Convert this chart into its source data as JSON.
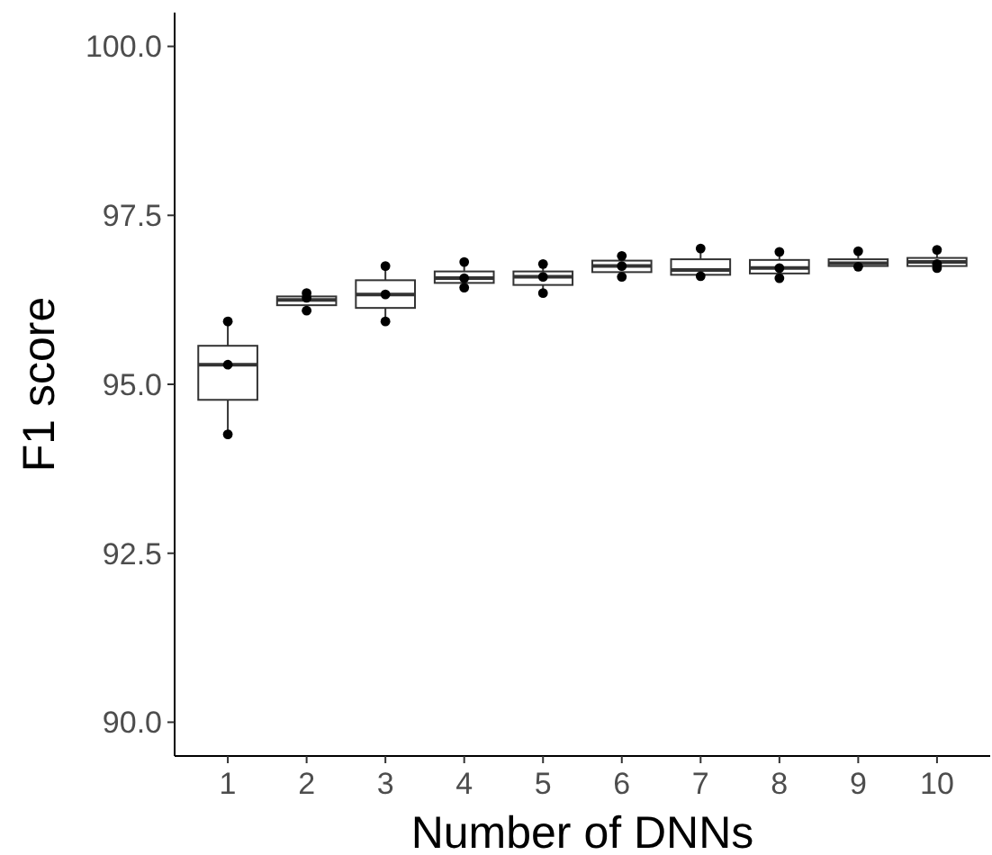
{
  "chart_data": {
    "type": "box",
    "xlabel": "Number of DNNs",
    "ylabel": "F1 score",
    "categories": [
      "1",
      "2",
      "3",
      "4",
      "5",
      "6",
      "7",
      "8",
      "9",
      "10"
    ],
    "boxes": [
      {
        "low": 94.26,
        "q1": 94.77,
        "median": 95.29,
        "q3": 95.57,
        "high": 95.93
      },
      {
        "low": 96.09,
        "q1": 96.17,
        "median": 96.25,
        "q3": 96.3,
        "high": 96.35
      },
      {
        "low": 95.93,
        "q1": 96.13,
        "median": 96.33,
        "q3": 96.54,
        "high": 96.75
      },
      {
        "low": 96.43,
        "q1": 96.5,
        "median": 96.57,
        "q3": 96.67,
        "high": 96.81
      },
      {
        "low": 96.35,
        "q1": 96.47,
        "median": 96.59,
        "q3": 96.67,
        "high": 96.78
      },
      {
        "low": 96.59,
        "q1": 96.66,
        "median": 96.75,
        "q3": 96.83,
        "high": 96.9
      },
      {
        "low": 96.6,
        "q1": 96.62,
        "median": 96.69,
        "q3": 96.85,
        "high": 97.01
      },
      {
        "low": 96.57,
        "q1": 96.64,
        "median": 96.72,
        "q3": 96.84,
        "high": 96.96
      },
      {
        "low": 96.74,
        "q1": 96.75,
        "median": 96.79,
        "q3": 96.85,
        "high": 96.97
      },
      {
        "low": 96.72,
        "q1": 96.75,
        "median": 96.81,
        "q3": 96.87,
        "high": 96.99
      }
    ],
    "series": [
      {
        "type": "scatter",
        "color": "#000000",
        "x": [
          "1",
          "1",
          "1",
          "2",
          "2",
          "2",
          "3",
          "3",
          "3",
          "4",
          "4",
          "4",
          "5",
          "5",
          "5",
          "6",
          "6",
          "6",
          "7",
          "7",
          "8",
          "8",
          "8",
          "9",
          "9",
          "10",
          "10",
          "10"
        ],
        "values": [
          95.93,
          95.29,
          94.26,
          96.35,
          96.28,
          96.09,
          96.75,
          96.33,
          95.93,
          96.81,
          96.57,
          96.43,
          96.78,
          96.59,
          96.35,
          96.9,
          96.75,
          96.59,
          97.01,
          96.6,
          96.96,
          96.72,
          96.57,
          96.97,
          96.74,
          96.99,
          96.78,
          96.72
        ]
      }
    ],
    "marker": "circle",
    "ylim": [
      89.5,
      100.5
    ],
    "yticks": [
      {
        "value": 90,
        "label": "90.0"
      },
      {
        "value": 92.5,
        "label": "92.5"
      },
      {
        "value": 95,
        "label": "95.0"
      },
      {
        "value": 97.5,
        "label": "97.5"
      },
      {
        "value": 100,
        "label": "100.0"
      }
    ],
    "grid": false
  }
}
